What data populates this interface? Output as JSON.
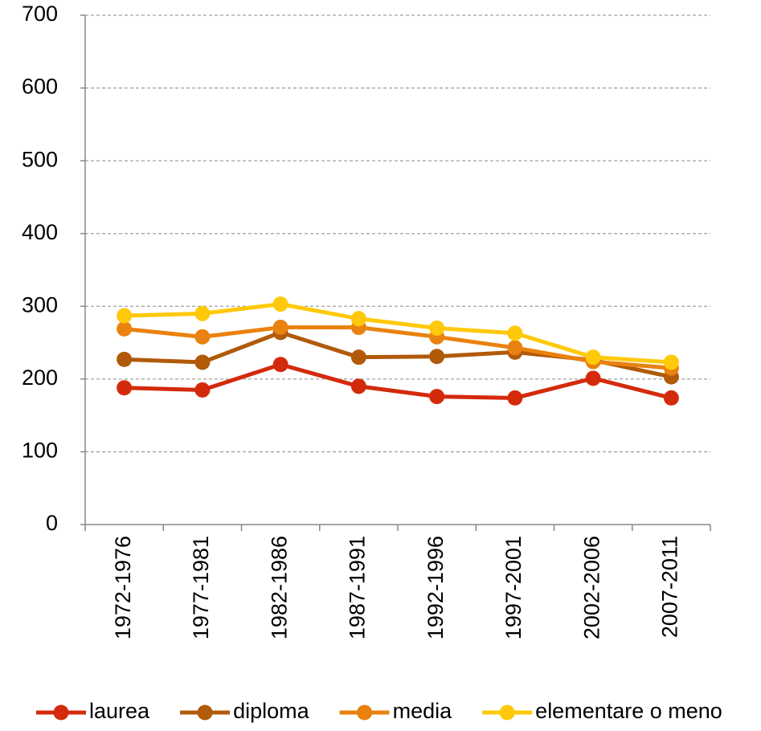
{
  "chart_data": {
    "type": "line",
    "categories": [
      "1972-1976",
      "1977-1981",
      "1982-1986",
      "1987-1991",
      "1992-1996",
      "1997-2001",
      "2002-2006",
      "2007-2011"
    ],
    "series": [
      {
        "name": "laurea",
        "color": "#d42a0c",
        "values": [
          188,
          185,
          220,
          190,
          176,
          174,
          201,
          174
        ]
      },
      {
        "name": "diploma",
        "color": "#b05a0a",
        "values": [
          227,
          223,
          264,
          230,
          231,
          237,
          226,
          203
        ]
      },
      {
        "name": "media",
        "color": "#e9820e",
        "values": [
          269,
          258,
          271,
          271,
          258,
          243,
          224,
          215
        ]
      },
      {
        "name": "elementare o meno",
        "color": "#ffc90a",
        "values": [
          287,
          290,
          303,
          283,
          270,
          263,
          230,
          223
        ]
      }
    ],
    "ylim": [
      0,
      700
    ],
    "yticks": [
      0,
      100,
      200,
      300,
      400,
      500,
      600,
      700
    ],
    "grid": true,
    "legend": "bottom"
  }
}
